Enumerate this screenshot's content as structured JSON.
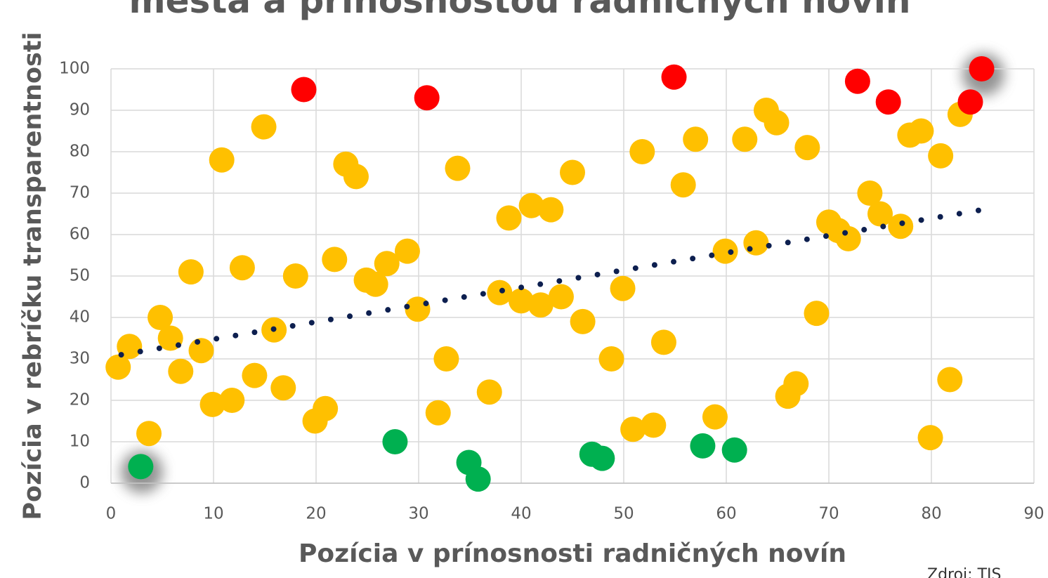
{
  "chart_data": {
    "type": "scatter",
    "title": "mesta a prínosnosťou radničných novín",
    "x_label": "Pozícia v prínosnosti radničných novín",
    "y_label": "Pozícia v rebríčku transparentnosti",
    "source": "Zdroj: TIS",
    "xlim": [
      0,
      90
    ],
    "xticks": [
      0,
      10,
      20,
      30,
      40,
      50,
      60,
      70,
      80,
      90
    ],
    "ylim": [
      0,
      100
    ],
    "yticks": [
      0,
      10,
      20,
      30,
      40,
      50,
      60,
      70,
      80,
      90,
      100
    ],
    "grid": true,
    "series": [
      {
        "color": "#ffc000",
        "x": [
          0.7,
          1.8,
          3.7,
          4.8,
          5.8,
          6.8,
          7.8,
          8.8,
          9.9,
          10.8,
          11.8,
          12.8,
          14,
          14.9,
          15.9,
          16.8,
          18,
          19.9,
          20.9,
          21.8,
          22.9,
          23.9,
          24.9,
          25.8,
          26.9,
          28.9,
          29.9,
          31.9,
          32.7,
          33.8,
          36.9,
          37.9,
          38.8,
          40,
          41,
          41.9,
          42.9,
          43.9,
          45,
          46,
          48.8,
          49.9,
          50.9,
          51.8,
          52.9,
          53.9,
          55.8,
          57,
          58.9,
          59.9,
          61.8,
          62.9,
          63.9,
          64.9,
          66,
          66.8,
          67.9,
          68.8,
          70,
          70.9,
          71.9,
          74,
          75,
          77,
          77.9,
          79,
          79.9,
          80.9,
          81.8,
          82.8
        ],
        "y": [
          28,
          33,
          12,
          40,
          35,
          27,
          51,
          32,
          19,
          78,
          20,
          52,
          26,
          86,
          37,
          23,
          50,
          15,
          18,
          54,
          77,
          74,
          49,
          48,
          53,
          56,
          42,
          17,
          30,
          76,
          22,
          46,
          64,
          44,
          67,
          43,
          66,
          45,
          75,
          39,
          30,
          47,
          13,
          80,
          14,
          34,
          72,
          83,
          16,
          56,
          83,
          58,
          90,
          87,
          21,
          24,
          81,
          41,
          63,
          61,
          59,
          70,
          65,
          62,
          84,
          85,
          11,
          79,
          25,
          89
        ]
      },
      {
        "color": "#ff0000",
        "x": [
          18.8,
          30.8,
          54.9,
          72.8,
          75.8,
          83.8,
          84.9
        ],
        "y": [
          95,
          93,
          98,
          97,
          92,
          92,
          100
        ]
      },
      {
        "color": "#00b050",
        "x": [
          2.9,
          27.7,
          34.9,
          35.8,
          46.9,
          47.9,
          57.7,
          60.8
        ],
        "y": [
          4,
          10,
          5,
          1,
          7,
          6,
          9,
          8
        ]
      }
    ],
    "trendline": {
      "color": "#0d1f4f",
      "x": [
        1,
        85
      ],
      "y": [
        31,
        66
      ]
    }
  }
}
